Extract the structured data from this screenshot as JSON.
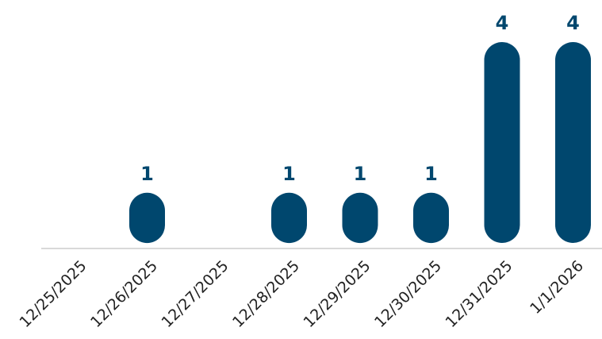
{
  "chart_data": {
    "type": "bar",
    "categories": [
      "12/25/2025",
      "12/26/2025",
      "12/27/2025",
      "12/28/2025",
      "12/29/2025",
      "12/30/2025",
      "12/31/2025",
      "1/1/2026"
    ],
    "values": [
      0,
      1,
      0,
      1,
      1,
      1,
      4,
      4
    ],
    "data_labels": [
      "",
      "1",
      "",
      "1",
      "1",
      "1",
      "4",
      "4"
    ],
    "title": "",
    "xlabel": "",
    "ylabel": "",
    "ylim": [
      0,
      4
    ],
    "grid": false,
    "legend": "none",
    "colors": {
      "bar": "#00476e",
      "label": "#00476e",
      "axis": "#d9d9d9"
    }
  }
}
